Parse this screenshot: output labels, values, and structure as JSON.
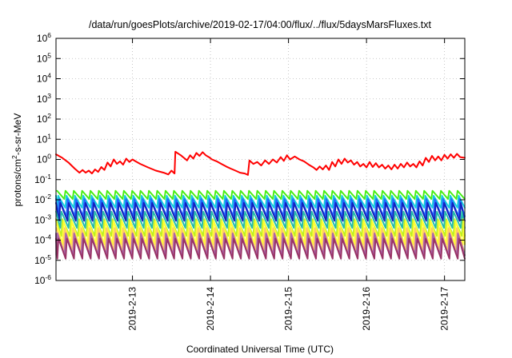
{
  "chart_data": {
    "type": "line",
    "title": "/data/run/goesPlots/archive/2019-02-17/04:00/flux/../flux/5daysMarsFluxes.txt",
    "xlabel": "Coordinated Universal Time (UTC)",
    "ylabel_base": "protons/cm",
    "ylabel_exp": "2",
    "ylabel_rest": "-s-sr-MeV",
    "y_scale": "log",
    "ylim": [
      1e-06,
      1000000.0
    ],
    "y_ticks": [
      {
        "base": "10",
        "exp": "-6",
        "value": -6
      },
      {
        "base": "10",
        "exp": "-5",
        "value": -5
      },
      {
        "base": "10",
        "exp": "-4",
        "value": -4
      },
      {
        "base": "10",
        "exp": "-3",
        "value": -3
      },
      {
        "base": "10",
        "exp": "-2",
        "value": -2
      },
      {
        "base": "10",
        "exp": "-1",
        "value": -1
      },
      {
        "base": "10",
        "exp": "0",
        "value": 0
      },
      {
        "base": "10",
        "exp": "1",
        "value": 1
      },
      {
        "base": "10",
        "exp": "2",
        "value": 2
      },
      {
        "base": "10",
        "exp": "3",
        "value": 3
      },
      {
        "base": "10",
        "exp": "4",
        "value": 4
      },
      {
        "base": "10",
        "exp": "5",
        "value": 5
      },
      {
        "base": "10",
        "exp": "6",
        "value": 6
      }
    ],
    "xlim_days": [
      12.02,
      17.26
    ],
    "x_ticks": [
      {
        "label": "2019-2-13",
        "day": 13
      },
      {
        "label": "2019-2-14",
        "day": 14
      },
      {
        "label": "2019-2-15",
        "day": 15
      },
      {
        "label": "2019-2-16",
        "day": 16
      },
      {
        "label": "2019-2-17",
        "day": 17
      }
    ],
    "grid": true,
    "series": [
      {
        "color": "#ff0000",
        "x": [
          12.02,
          12.1,
          12.18,
          12.26,
          12.32,
          12.36,
          12.4,
          12.44,
          12.48,
          12.52,
          12.56,
          12.6,
          12.64,
          12.68,
          12.72,
          12.76,
          12.8,
          12.84,
          12.88,
          12.92,
          12.96,
          13.0,
          13.04,
          13.1,
          13.2,
          13.3,
          13.4,
          13.46,
          13.5,
          13.54,
          13.55,
          13.62,
          13.66,
          13.7,
          13.74,
          13.78,
          13.82,
          13.86,
          13.9,
          13.94,
          13.98,
          14.02,
          14.08,
          14.14,
          14.2,
          14.26,
          14.32,
          14.38,
          14.44,
          14.48,
          14.5,
          14.55,
          14.6,
          14.65,
          14.7,
          14.75,
          14.8,
          14.85,
          14.9,
          14.94,
          14.98,
          15.02,
          15.08,
          15.14,
          15.2,
          15.26,
          15.32,
          15.36,
          15.4,
          15.44,
          15.48,
          15.52,
          15.56,
          15.6,
          15.64,
          15.68,
          15.72,
          15.76,
          15.8,
          15.84,
          15.88,
          15.92,
          15.96,
          16.0,
          16.04,
          16.08,
          16.12,
          16.16,
          16.2,
          16.24,
          16.28,
          16.32,
          16.36,
          16.4,
          16.44,
          16.48,
          16.52,
          16.56,
          16.6,
          16.64,
          16.68,
          16.72,
          16.76,
          16.8,
          16.84,
          16.88,
          16.92,
          16.96,
          17.0,
          17.04,
          17.08,
          17.12,
          17.16,
          17.2,
          17.26
        ],
        "y": [
          1.8,
          1.2,
          0.7,
          0.35,
          0.22,
          0.3,
          0.22,
          0.28,
          0.2,
          0.32,
          0.24,
          0.42,
          0.3,
          0.7,
          0.45,
          1.0,
          0.6,
          0.8,
          0.55,
          1.1,
          0.75,
          1.0,
          0.8,
          0.6,
          0.4,
          0.28,
          0.22,
          0.18,
          0.28,
          0.2,
          2.4,
          1.6,
          1.2,
          0.9,
          1.6,
          1.1,
          2.1,
          1.5,
          2.3,
          1.6,
          1.3,
          1.0,
          0.8,
          0.6,
          0.45,
          0.35,
          0.28,
          0.22,
          0.2,
          0.17,
          0.9,
          0.6,
          0.75,
          0.5,
          0.9,
          0.6,
          1.0,
          0.7,
          1.3,
          0.85,
          1.6,
          1.0,
          1.4,
          1.0,
          0.8,
          0.55,
          0.4,
          0.3,
          0.45,
          0.32,
          0.5,
          0.3,
          0.75,
          0.45,
          1.0,
          0.6,
          1.1,
          0.7,
          0.9,
          0.55,
          0.75,
          0.45,
          0.6,
          0.4,
          0.75,
          0.42,
          0.65,
          0.4,
          0.55,
          0.35,
          0.5,
          0.32,
          0.55,
          0.35,
          0.6,
          0.4,
          0.7,
          0.45,
          0.6,
          0.4,
          0.8,
          0.5,
          1.2,
          0.75,
          1.5,
          0.9,
          1.4,
          0.9,
          1.7,
          1.1,
          1.8,
          1.2,
          1.9,
          1.3,
          1.2
        ]
      },
      {
        "color": "#44ee11",
        "pattern": "sawtooth",
        "peak": 0.028,
        "trough": 0.011
      },
      {
        "color": "#11ccdd",
        "pattern": "sawtooth",
        "peak": 0.016,
        "trough": 0.004
      },
      {
        "color": "#2266ff",
        "pattern": "sawtooth",
        "peak": 0.011,
        "trough": 0.0015
      },
      {
        "color": "#1122bb",
        "pattern": "sawtooth",
        "peak": 0.007,
        "trough": 0.0009
      },
      {
        "color": "#22bbaa",
        "pattern": "sawtooth",
        "peak": 0.0026,
        "trough": 0.0004
      },
      {
        "color": "#bbee22",
        "pattern": "sawtooth",
        "peak": 0.0011,
        "trough": 0.00016
      },
      {
        "color": "#ffff33",
        "pattern": "sawtooth",
        "peak": 0.0009,
        "trough": 6e-05
      },
      {
        "color": "#ffcc66",
        "pattern": "sawtooth",
        "peak": 0.0004,
        "trough": 3e-05
      },
      {
        "color": "#aa66aa",
        "pattern": "sawtooth",
        "peak": 0.00022,
        "trough": 1.8e-05
      },
      {
        "color": "#993366",
        "pattern": "sawtooth",
        "peak": 0.00012,
        "trough": 1.2e-05
      }
    ]
  }
}
